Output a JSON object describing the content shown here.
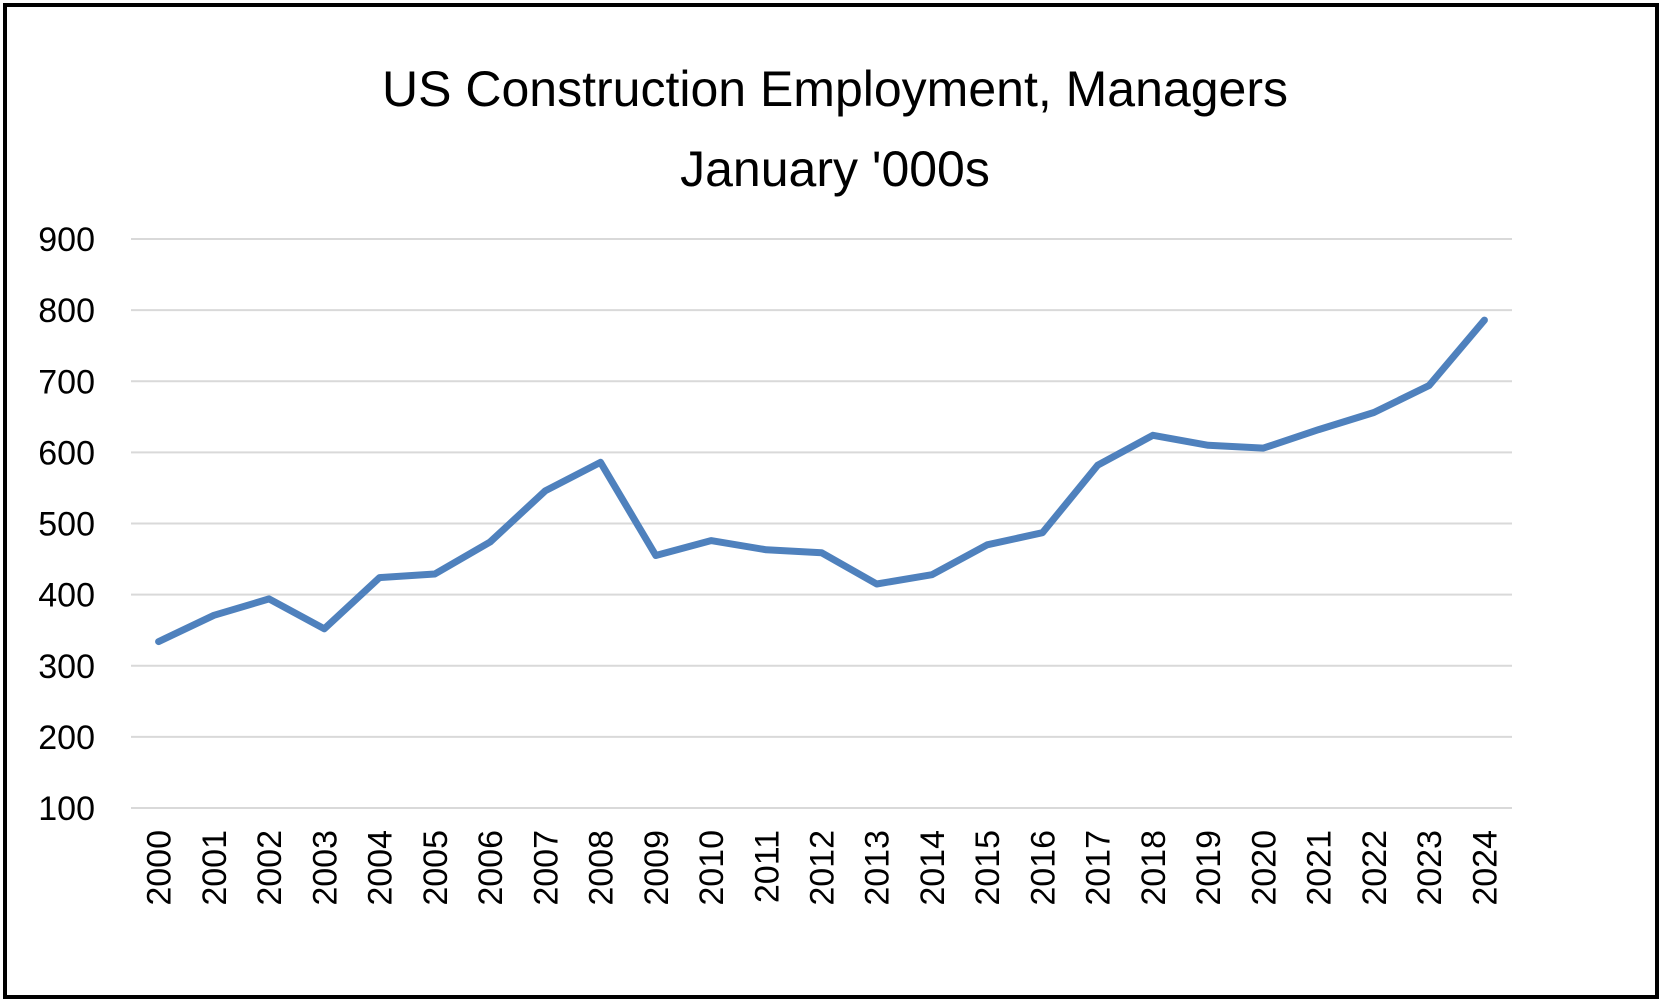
{
  "chart_data": {
    "type": "line",
    "title": "US Construction Employment, Managers",
    "subtitle": "January '000s",
    "xlabel": "",
    "ylabel": "",
    "ylim": [
      100,
      900
    ],
    "yticks": [
      100,
      200,
      300,
      400,
      500,
      600,
      700,
      800,
      900
    ],
    "grid": true,
    "legend": "none",
    "line_color": "#4F81BD",
    "categories": [
      "2000",
      "2001",
      "2002",
      "2003",
      "2004",
      "2005",
      "2006",
      "2007",
      "2008",
      "2009",
      "2010",
      "2011",
      "2012",
      "2013",
      "2014",
      "2015",
      "2016",
      "2017",
      "2018",
      "2019",
      "2020",
      "2021",
      "2022",
      "2023",
      "2024"
    ],
    "series": [
      {
        "values": [
          334,
          371,
          394,
          352,
          424,
          429,
          474,
          546,
          586,
          455,
          476,
          463,
          459,
          415,
          428,
          470,
          487,
          582,
          624,
          610,
          606,
          632,
          656,
          694,
          786
        ]
      }
    ]
  }
}
